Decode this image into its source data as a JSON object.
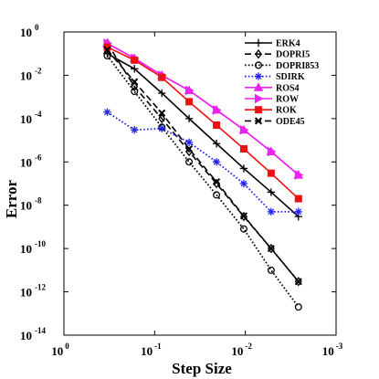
{
  "chart_data": {
    "type": "line",
    "xlabel": "Step Size",
    "ylabel": "Error",
    "x_scale": "log",
    "y_scale": "log",
    "x_reversed": true,
    "xlim": [
      1,
      0.001
    ],
    "ylim": [
      1e-14,
      1
    ],
    "x_ticks": [
      {
        "value": 1,
        "base": "10",
        "exp": "0"
      },
      {
        "value": 0.1,
        "base": "10",
        "exp": "-1"
      },
      {
        "value": 0.01,
        "base": "10",
        "exp": "-2"
      },
      {
        "value": 0.001,
        "base": "10",
        "exp": "-3"
      }
    ],
    "y_ticks": [
      {
        "value": 1,
        "base": "10",
        "exp": "0"
      },
      {
        "value": 0.01,
        "base": "10",
        "exp": "-2"
      },
      {
        "value": 0.0001,
        "base": "10",
        "exp": "-4"
      },
      {
        "value": 1e-06,
        "base": "10",
        "exp": "-6"
      },
      {
        "value": 1e-08,
        "base": "10",
        "exp": "-8"
      },
      {
        "value": 1e-10,
        "base": "10",
        "exp": "-10"
      },
      {
        "value": 1e-12,
        "base": "10",
        "exp": "-12"
      },
      {
        "value": 1e-14,
        "base": "10",
        "exp": "-14"
      }
    ],
    "grid": false,
    "legend_position": "top-right",
    "x": [
      0.333,
      0.167,
      0.0833,
      0.0417,
      0.0208,
      0.0104,
      0.0052,
      0.0026
    ],
    "series": [
      {
        "name": "ERK4",
        "color": "#000000",
        "dash": "solid",
        "marker": "plus",
        "values": [
          0.1,
          0.02,
          0.0015,
          0.0001,
          7e-06,
          5e-07,
          4e-08,
          3e-09
        ]
      },
      {
        "name": "DOPRI5",
        "color": "#000000",
        "dash": "dash",
        "marker": "diamond",
        "values": [
          0.3,
          0.003,
          0.0001,
          3e-06,
          1e-07,
          3e-09,
          1e-10,
          3e-12
        ]
      },
      {
        "name": "DOPRI853",
        "color": "#000000",
        "dash": "dot",
        "marker": "circle",
        "values": [
          0.08,
          0.0018,
          4e-05,
          1e-06,
          3e-08,
          8e-10,
          1e-11,
          2e-13
        ]
      },
      {
        "name": "SDIRK",
        "color": "#2222ee",
        "dash": "dot",
        "marker": "asterisk",
        "values": [
          0.0002,
          3e-05,
          3.5e-05,
          8e-06,
          1e-06,
          1e-07,
          5e-09,
          5e-09
        ]
      },
      {
        "name": "ROS4",
        "color": "#ee22ee",
        "dash": "solid",
        "marker": "triangle-up",
        "values": [
          0.3,
          0.06,
          0.01,
          0.002,
          0.00025,
          3e-05,
          3e-06,
          2.5e-07
        ]
      },
      {
        "name": "ROW",
        "color": "#ee22ee",
        "dash": "solid",
        "marker": "triangle-right",
        "values": [
          0.3,
          0.06,
          0.01,
          0.002,
          0.00025,
          3e-05,
          3e-06,
          2.5e-07
        ]
      },
      {
        "name": "ROK",
        "color": "#ee1111",
        "dash": "solid",
        "marker": "square",
        "values": [
          0.2,
          0.05,
          0.008,
          0.0006,
          5e-05,
          4e-06,
          3e-07,
          2e-08
        ]
      },
      {
        "name": "ODE45",
        "color": "#000000",
        "dash": "dash",
        "marker": "x",
        "values": [
          0.15,
          0.005,
          0.00018,
          4e-06,
          1.2e-07,
          3.2e-09,
          1e-10,
          3e-12
        ]
      }
    ]
  }
}
